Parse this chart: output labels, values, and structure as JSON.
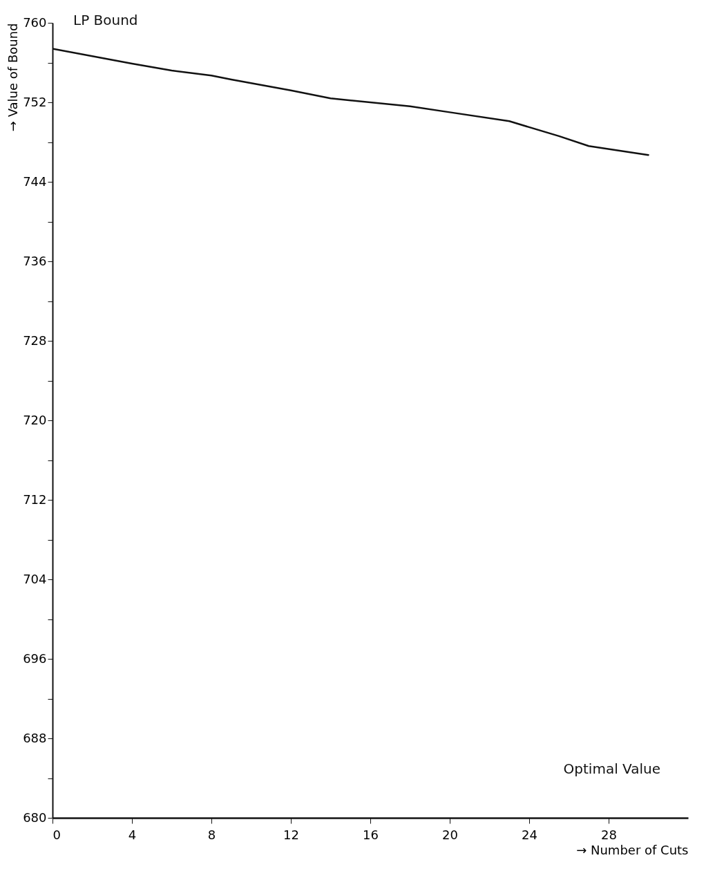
{
  "chart_data": {
    "type": "line",
    "xlabel": "→ Number of Cuts",
    "ylabel": "→ Value of Bound",
    "x": [
      0,
      4,
      6,
      8,
      9,
      12,
      14,
      18,
      20,
      23,
      25.5,
      27,
      30
    ],
    "series": [
      {
        "color": "#111111",
        "values": [
          757.4,
          755.9,
          755.2,
          754.7,
          754.3,
          753.2,
          752.4,
          751.6,
          751.0,
          750.1,
          748.6,
          747.6,
          746.7
        ]
      }
    ],
    "xlim": [
      0,
      32
    ],
    "xticks": [
      0,
      4,
      8,
      12,
      16,
      20,
      24,
      28
    ],
    "ylim": [
      680,
      760
    ],
    "yticks": [
      680,
      {
        "value": 684,
        "label": null
      },
      688,
      {
        "value": 692,
        "label": null
      },
      696,
      {
        "value": 700,
        "label": null
      },
      704,
      {
        "value": 708,
        "label": null
      },
      712,
      {
        "value": 716,
        "label": null
      },
      720,
      {
        "value": 724,
        "label": null
      },
      728,
      {
        "value": 732,
        "label": null
      },
      736,
      {
        "value": 740,
        "label": null
      },
      744,
      {
        "value": 748,
        "label": null
      },
      752,
      {
        "value": 756,
        "label": null
      },
      760
    ],
    "annotations": [
      {
        "text": "LP Bound",
        "x": 0,
        "y": 757.4
      },
      "Optimal Value"
    ],
    "grid": false,
    "marker": "none",
    "line_style": "solid"
  }
}
